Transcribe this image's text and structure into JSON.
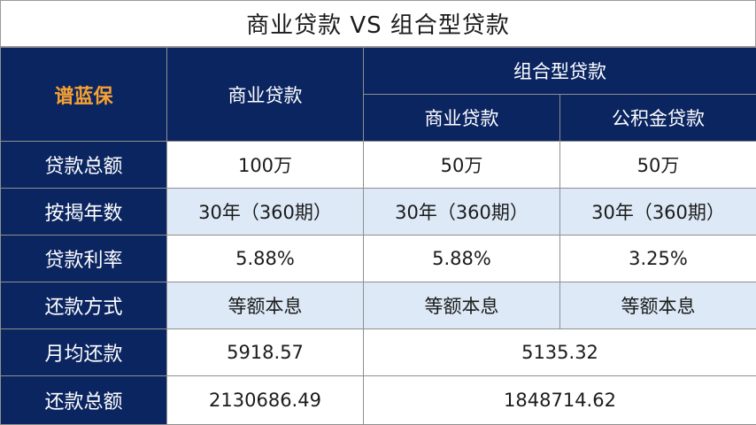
{
  "title": "商业贷款 VS 组合型贷款",
  "header": {
    "brand": "谱蓝保",
    "commercial": "商业贷款",
    "combo": "组合型贷款",
    "combo_commercial": "商业贷款",
    "combo_fund": "公积金贷款"
  },
  "rows": [
    {
      "label": "贷款总额",
      "commercial": "100万",
      "combo_commercial": "50万",
      "combo_fund": "50万"
    },
    {
      "label": "按揭年数",
      "commercial": "30年（360期）",
      "combo_commercial": "30年（360期）",
      "combo_fund": "30年（360期）"
    },
    {
      "label": "贷款利率",
      "commercial": "5.88%",
      "combo_commercial": "5.88%",
      "combo_fund": "3.25%"
    },
    {
      "label": "还款方式",
      "commercial": "等额本息",
      "combo_commercial": "等额本息",
      "combo_fund": "等额本息"
    },
    {
      "label": "月均还款",
      "commercial": "5918.57",
      "combo_total": "5135.32"
    },
    {
      "label": "还款总额",
      "commercial": "2130686.49",
      "combo_total": "1848714.62"
    }
  ],
  "colors": {
    "header_bg": "#0b2561",
    "brand_text": "#f7a132",
    "alt_row_bg": "#dde9f6"
  }
}
